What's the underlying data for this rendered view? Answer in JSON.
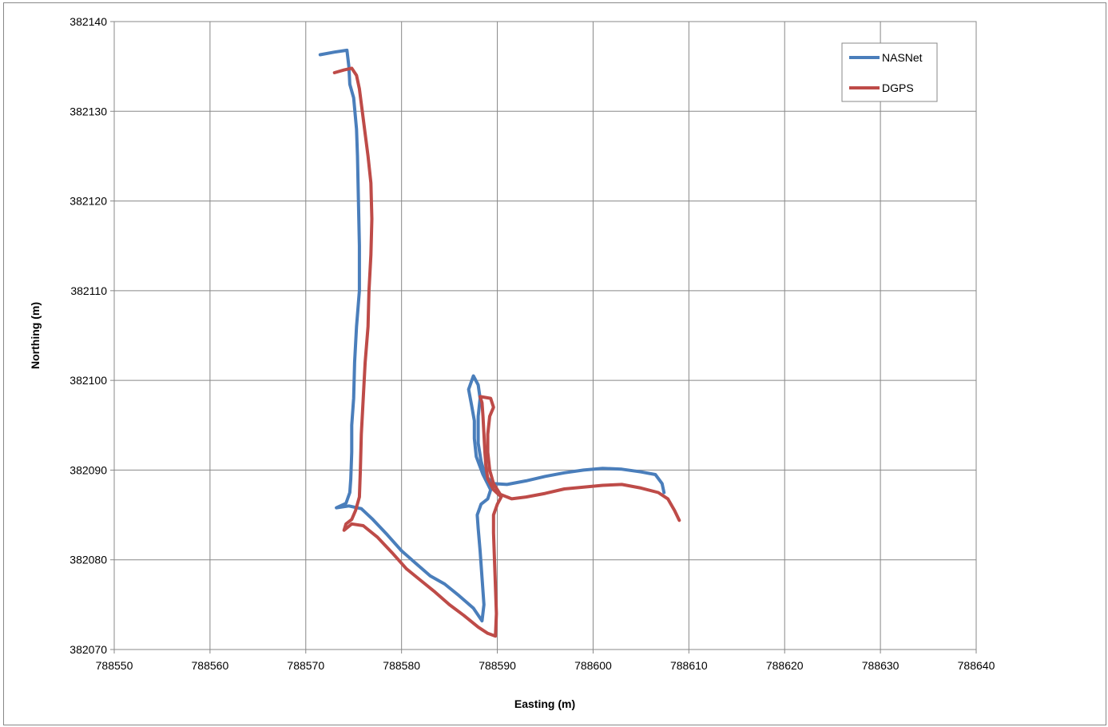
{
  "chart_data": {
    "type": "line",
    "title": "",
    "xlabel": "Easting (m)",
    "ylabel": "Northing (m)",
    "xlim": [
      788550,
      788640
    ],
    "ylim": [
      382070,
      382140
    ],
    "x_ticks": [
      "788550",
      "788560",
      "788570",
      "788580",
      "788590",
      "788600",
      "788610",
      "788620",
      "788630",
      "788640"
    ],
    "y_ticks": [
      "382140",
      "382130",
      "382120",
      "382110",
      "382100",
      "382090",
      "382080",
      "382070"
    ],
    "grid": true,
    "legend_position": "top-right",
    "series": [
      {
        "name": "NASNet",
        "color": "#4a7ebb",
        "points": [
          [
            788571.5,
            382136.3
          ],
          [
            788573.0,
            382136.6
          ],
          [
            788574.3,
            382136.8
          ],
          [
            788574.5,
            382135.0
          ],
          [
            788574.6,
            382133.0
          ],
          [
            788575.0,
            382131.5
          ],
          [
            788575.3,
            382128.0
          ],
          [
            788575.4,
            382125.0
          ],
          [
            788575.5,
            382120.0
          ],
          [
            788575.6,
            382115.0
          ],
          [
            788575.6,
            382110.0
          ],
          [
            788575.3,
            382106.0
          ],
          [
            788575.1,
            382102.0
          ],
          [
            788575.0,
            382098.0
          ],
          [
            788574.8,
            382095.0
          ],
          [
            788574.8,
            382092.0
          ],
          [
            788574.7,
            382089.0
          ],
          [
            788574.6,
            382087.5
          ],
          [
            788574.2,
            382086.3
          ],
          [
            788573.2,
            382085.8
          ],
          [
            788574.5,
            382086.0
          ],
          [
            788575.8,
            382085.7
          ],
          [
            788577.0,
            382084.5
          ],
          [
            788578.5,
            382082.8
          ],
          [
            788580.0,
            382081.0
          ],
          [
            788581.5,
            382079.6
          ],
          [
            788583.0,
            382078.2
          ],
          [
            788584.5,
            382077.3
          ],
          [
            788586.0,
            382076.0
          ],
          [
            788587.5,
            382074.6
          ],
          [
            788588.4,
            382073.2
          ],
          [
            788588.6,
            382075.0
          ],
          [
            788588.4,
            382078.0
          ],
          [
            788588.2,
            382081.0
          ],
          [
            788588.0,
            382083.5
          ],
          [
            788587.9,
            382085.0
          ],
          [
            788588.3,
            382086.2
          ],
          [
            788589.0,
            382086.8
          ],
          [
            788589.3,
            382087.8
          ],
          [
            788588.5,
            382089.5
          ],
          [
            788587.8,
            382091.5
          ],
          [
            788587.6,
            382093.5
          ],
          [
            788587.6,
            382095.5
          ],
          [
            788587.3,
            382097.3
          ],
          [
            788587.0,
            382099.0
          ],
          [
            788587.5,
            382100.5
          ],
          [
            788588.0,
            382099.5
          ],
          [
            788588.2,
            382098.0
          ],
          [
            788588.0,
            382096.0
          ],
          [
            788588.0,
            382093.0
          ],
          [
            788588.3,
            382091.0
          ],
          [
            788588.7,
            382089.5
          ],
          [
            788589.5,
            382088.5
          ],
          [
            788591.0,
            382088.4
          ],
          [
            788593.0,
            382088.8
          ],
          [
            788595.0,
            382089.3
          ],
          [
            788597.0,
            382089.7
          ],
          [
            788599.0,
            382090.0
          ],
          [
            788601.0,
            382090.2
          ],
          [
            788603.0,
            382090.1
          ],
          [
            788605.0,
            382089.8
          ],
          [
            788606.5,
            382089.5
          ],
          [
            788607.2,
            382088.5
          ],
          [
            788607.4,
            382087.5
          ]
        ]
      },
      {
        "name": "DGPS",
        "color": "#be4b48",
        "points": [
          [
            788573.0,
            382134.3
          ],
          [
            788574.0,
            382134.6
          ],
          [
            788574.8,
            382134.8
          ],
          [
            788575.3,
            382134.0
          ],
          [
            788575.6,
            382132.5
          ],
          [
            788575.9,
            382130.0
          ],
          [
            788576.2,
            382127.5
          ],
          [
            788576.5,
            382125.0
          ],
          [
            788576.8,
            382122.0
          ],
          [
            788576.9,
            382118.0
          ],
          [
            788576.8,
            382114.0
          ],
          [
            788576.6,
            382110.0
          ],
          [
            788576.5,
            382106.0
          ],
          [
            788576.2,
            382102.0
          ],
          [
            788576.0,
            382098.0
          ],
          [
            788575.8,
            382094.0
          ],
          [
            788575.7,
            382090.0
          ],
          [
            788575.6,
            382087.0
          ],
          [
            788575.2,
            382085.5
          ],
          [
            788574.8,
            382084.5
          ],
          [
            788574.2,
            382084.0
          ],
          [
            788574.0,
            382083.3
          ],
          [
            788574.8,
            382084.0
          ],
          [
            788576.0,
            382083.8
          ],
          [
            788577.5,
            382082.5
          ],
          [
            788579.0,
            382080.8
          ],
          [
            788580.5,
            382079.0
          ],
          [
            788582.0,
            382077.7
          ],
          [
            788583.5,
            382076.4
          ],
          [
            788585.0,
            382075.0
          ],
          [
            788586.5,
            382073.8
          ],
          [
            788588.0,
            382072.5
          ],
          [
            788589.0,
            382071.8
          ],
          [
            788589.8,
            382071.5
          ],
          [
            788589.9,
            382074.0
          ],
          [
            788589.8,
            382077.0
          ],
          [
            788589.7,
            382080.0
          ],
          [
            788589.6,
            382083.0
          ],
          [
            788589.6,
            382085.0
          ],
          [
            788590.0,
            382086.2
          ],
          [
            788590.4,
            382087.0
          ],
          [
            788589.6,
            382087.8
          ],
          [
            788589.0,
            382089.0
          ],
          [
            788588.8,
            382090.5
          ],
          [
            788588.7,
            382092.0
          ],
          [
            788588.6,
            382094.0
          ],
          [
            788588.5,
            382096.0
          ],
          [
            788588.4,
            382097.5
          ],
          [
            788588.2,
            382098.2
          ],
          [
            788589.3,
            382098.0
          ],
          [
            788589.6,
            382097.0
          ],
          [
            788589.2,
            382096.0
          ],
          [
            788589.0,
            382094.0
          ],
          [
            788589.0,
            382092.0
          ],
          [
            788589.2,
            382090.0
          ],
          [
            788589.6,
            382088.5
          ],
          [
            788590.3,
            382087.3
          ],
          [
            788591.5,
            382086.8
          ],
          [
            788593.0,
            382087.0
          ],
          [
            788595.0,
            382087.4
          ],
          [
            788597.0,
            382087.9
          ],
          [
            788599.0,
            382088.1
          ],
          [
            788601.0,
            382088.3
          ],
          [
            788603.0,
            382088.4
          ],
          [
            788605.0,
            382088.0
          ],
          [
            788606.8,
            382087.5
          ],
          [
            788607.8,
            382086.8
          ],
          [
            788608.5,
            382085.5
          ],
          [
            788609.0,
            382084.4
          ]
        ]
      }
    ]
  }
}
